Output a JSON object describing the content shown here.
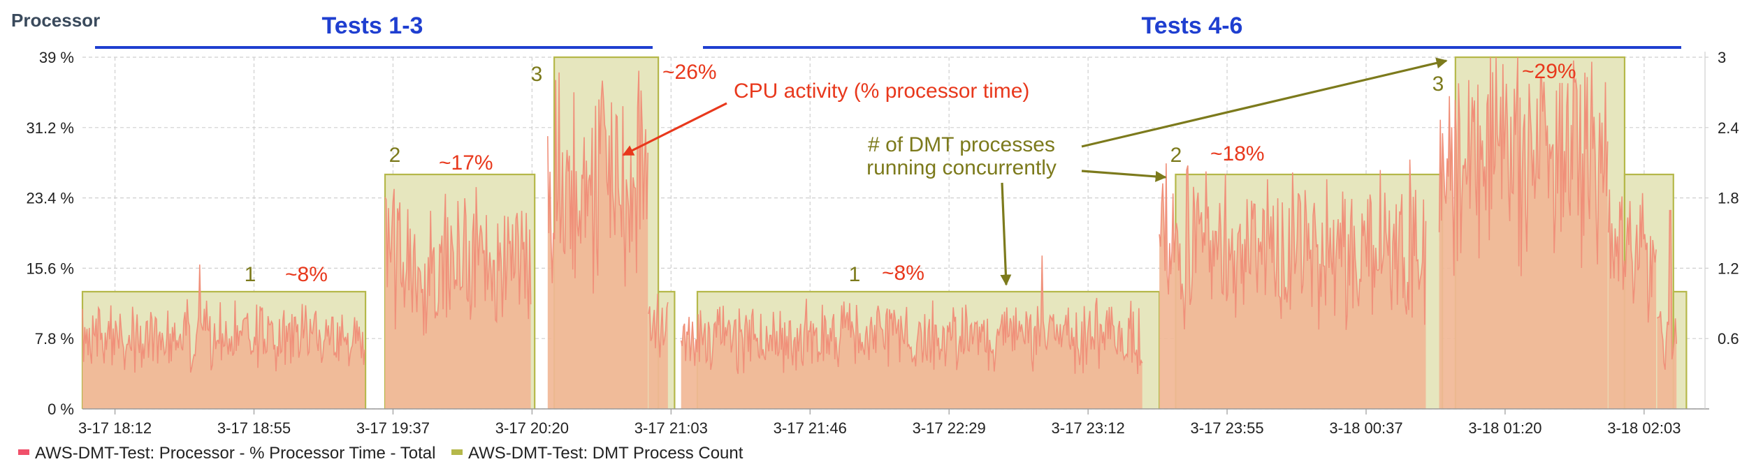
{
  "panel_title": "Processor",
  "group_labels": [
    "Tests 1-3",
    "Tests 4-6"
  ],
  "annotations": {
    "cpu": "CPU activity (% processor time)",
    "dmt_line1": "# of DMT processes",
    "dmt_line2": "running concurrently"
  },
  "colors": {
    "cpu_fill": "#f1b796",
    "cpu_line": "#f0907a",
    "count_fill": "#e6e6be",
    "count_line": "#b5b84a",
    "group_line": "#1f3fd0",
    "cpu_text": "#e8381c",
    "count_text": "#7c7a1c",
    "legend_cpu": "#f0506a",
    "legend_count": "#b5b84a"
  },
  "chart_data": {
    "type": "area",
    "x_tick_labels": [
      "3-17 18:12",
      "3-17 18:55",
      "3-17 19:37",
      "3-17 20:20",
      "3-17 21:03",
      "3-17 21:46",
      "3-17 22:29",
      "3-17 23:12",
      "3-17 23:55",
      "3-18 00:37",
      "3-18 01:20",
      "3-18 02:03"
    ],
    "x_start": "3-17 18:02",
    "x_end": "3-18 02:22",
    "y_left": {
      "ticks": [
        "0 %",
        "7.8 %",
        "15.6 %",
        "23.4 %",
        "31.2 %",
        "39 %"
      ],
      "min": 0,
      "max": 39
    },
    "y_right": {
      "ticks": [
        "0.6",
        "1.2",
        "1.8",
        "2.4",
        "3"
      ],
      "min": 0,
      "max": 3
    },
    "grid": true,
    "legend_position": "bottom-left",
    "series": [
      {
        "name": "AWS-DMT-Test: Processor - % Processor Time - Total",
        "axis": "left",
        "segments": [
          {
            "start": "3-17 18:02",
            "end": "3-17 19:29",
            "mean": 8
          },
          {
            "start": "3-17 19:35",
            "end": "3-17 20:20",
            "mean": 17
          },
          {
            "start": "3-17 20:25",
            "end": "3-17 20:56",
            "mean": 26
          },
          {
            "start": "3-17 20:56",
            "end": "3-17 21:02",
            "mean": 9
          },
          {
            "start": "3-17 21:06",
            "end": "3-17 23:28",
            "mean": 8
          },
          {
            "start": "3-17 23:33",
            "end": "3-18 00:55",
            "mean": 18
          },
          {
            "start": "3-18 00:59",
            "end": "3-18 01:51",
            "mean": 29
          },
          {
            "start": "3-18 01:51",
            "end": "3-18 02:06",
            "mean": 17
          },
          {
            "start": "3-18 02:06",
            "end": "3-18 02:12",
            "mean": 8
          }
        ],
        "peaks": [
          {
            "time": "3-17 18:38",
            "value": 16
          },
          {
            "time": "3-17 20:53",
            "value": 37.5
          },
          {
            "time": "3-17 22:57",
            "value": 17
          },
          {
            "time": "3-18 01:46",
            "value": 38.5
          },
          {
            "time": "3-18 02:10",
            "value": 22
          }
        ]
      },
      {
        "name": "AWS-DMT-Test: DMT Process Count",
        "axis": "right",
        "segments": [
          {
            "start": "3-17 18:02",
            "end": "3-17 19:29",
            "value": 1
          },
          {
            "start": "3-17 19:35",
            "end": "3-17 20:21",
            "value": 2
          },
          {
            "start": "3-17 20:27",
            "end": "3-17 20:59",
            "value": 3
          },
          {
            "start": "3-17 20:59",
            "end": "3-17 21:04",
            "value": 1
          },
          {
            "start": "3-17 21:11",
            "end": "3-17 23:33",
            "value": 1
          },
          {
            "start": "3-17 23:38",
            "end": "3-18 01:00",
            "value": 2
          },
          {
            "start": "3-18 01:04",
            "end": "3-18 01:56",
            "value": 3
          },
          {
            "start": "3-18 01:56",
            "end": "3-18 02:11",
            "value": 2
          },
          {
            "start": "3-18 02:11",
            "end": "3-18 02:15",
            "value": 1
          }
        ]
      }
    ],
    "labels": [
      {
        "count": "1",
        "pct": "~8%"
      },
      {
        "count": "2",
        "pct": "~17%"
      },
      {
        "count": "3",
        "pct": "~26%"
      },
      {
        "count": "1",
        "pct": "~8%"
      },
      {
        "count": "2",
        "pct": "~18%"
      },
      {
        "count": "3",
        "pct": "~29%"
      }
    ]
  }
}
